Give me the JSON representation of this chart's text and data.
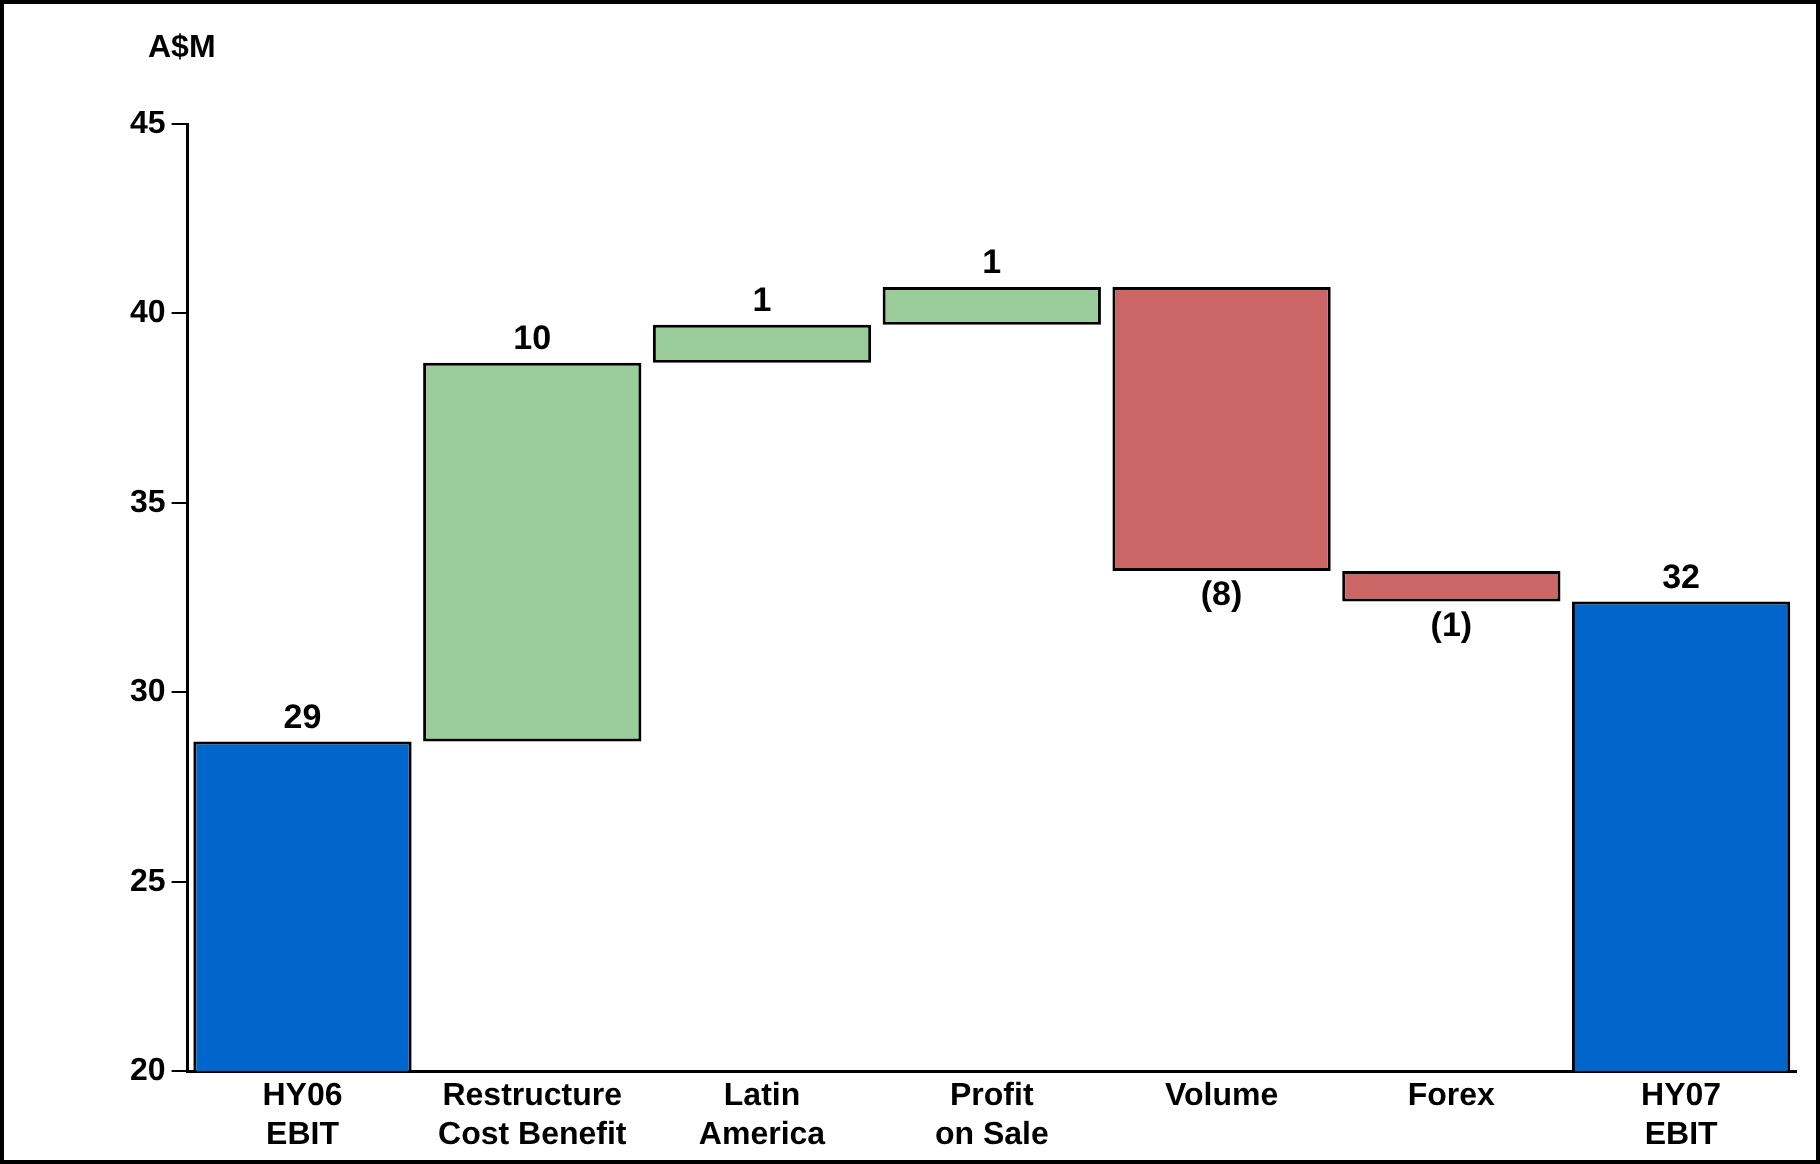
{
  "chart_data": {
    "type": "bar",
    "ylabel": "A$M",
    "categories": [
      "HY06\nEBIT",
      "Restructure\nCost Benefit",
      "Latin\nAmerica",
      "Profit\non Sale",
      "Volume",
      "Forex",
      "HY07\nEBIT"
    ],
    "base": [
      0,
      28.7,
      38.7,
      39.7,
      40.7,
      33.2,
      0
    ],
    "values": [
      28.7,
      10,
      1,
      1,
      -7.5,
      -0.8,
      32.4
    ],
    "value_labels": [
      "29",
      "10",
      "1",
      "1",
      "(8)",
      "(1)",
      "32"
    ],
    "colors": [
      "#0066cc",
      "#99cc99",
      "#99cc99",
      "#99cc99",
      "#cc6666",
      "#cc6666",
      "#0066cc"
    ],
    "ylim": [
      20,
      45
    ],
    "yticks": [
      20,
      25,
      30,
      35,
      40,
      45
    ],
    "grid": false,
    "legend": false
  }
}
